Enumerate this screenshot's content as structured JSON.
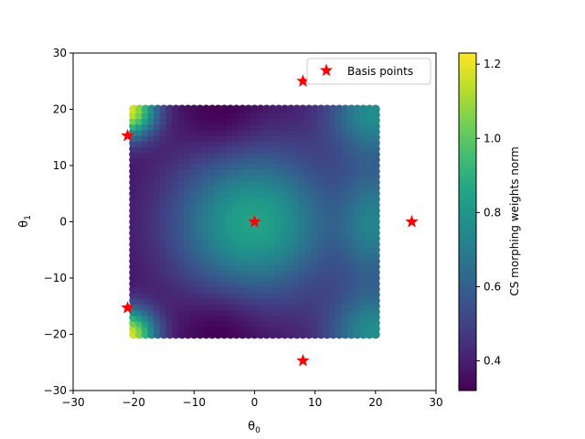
{
  "chart_data": {
    "type": "scatter",
    "xlabel": "θ",
    "xlabel_sub": "0",
    "ylabel": "θ",
    "ylabel_sub": "1",
    "xlim": [
      -30,
      30
    ],
    "ylim": [
      -30,
      30
    ],
    "xticks": [
      -30,
      -20,
      -10,
      0,
      10,
      20,
      30
    ],
    "yticks": [
      -30,
      -20,
      -10,
      0,
      10,
      20,
      30
    ],
    "tick_labels_x": [
      "−30",
      "−20",
      "−10",
      "0",
      "10",
      "20",
      "30"
    ],
    "tick_labels_y": [
      "−30",
      "−20",
      "−10",
      "0",
      "10",
      "20",
      "30"
    ],
    "grid": false,
    "legend": {
      "position": "top-right",
      "entries": [
        "Basis points"
      ]
    },
    "basis_points": {
      "name": "Basis points",
      "color": "#ff0000",
      "marker": "star",
      "points": [
        [
          0,
          0
        ],
        [
          8,
          25
        ],
        [
          -21,
          15.3
        ],
        [
          26,
          0
        ],
        [
          -21,
          -15.3
        ],
        [
          8,
          -24.7
        ]
      ]
    },
    "heatmap_grid": {
      "x_range": [
        -20,
        20
      ],
      "y_range": [
        -20,
        20
      ],
      "colormap": "viridis",
      "value_label": "CS morphing weights norm"
    },
    "colorbar": {
      "label": "CS morphing weights norm",
      "vmin": 0.32,
      "vmax": 1.23,
      "ticks": [
        0.4,
        0.6,
        0.8,
        1.0,
        1.2
      ],
      "tick_labels": [
        "0.4",
        "0.6",
        "0.8",
        "1.0",
        "1.2"
      ]
    }
  }
}
